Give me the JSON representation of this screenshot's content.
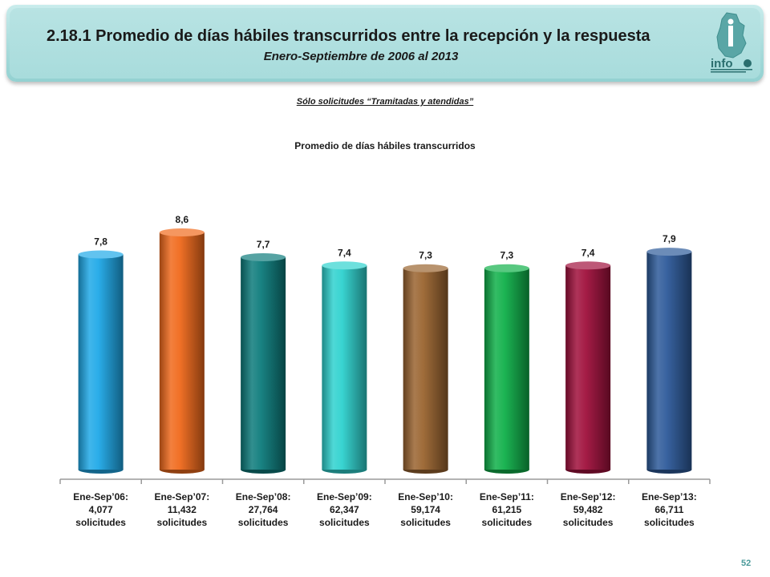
{
  "header": {
    "title": "2.18.1 Promedio de días hábiles transcurridos entre la recepción y la respuesta",
    "subtitle": "Enero-Septiembre de 2006 al 2013",
    "logo_text": "info"
  },
  "note": "Sólo solicitudes “Tramitadas y atendidas”",
  "page_number": "52",
  "chart_data": {
    "type": "bar",
    "title": "Promedio de días hábiles transcurridos",
    "categories": [
      "Ene-Sep’06:",
      "Ene-Sep’07:",
      "Ene-Sep’08:",
      "Ene-Sep’09:",
      "Ene-Sep’10:",
      "Ene-Sep’11:",
      "Ene-Sep’12:",
      "Ene-Sep’13:"
    ],
    "category_counts": [
      "4,077",
      "11,432",
      "27,764",
      "62,347",
      "59,174",
      "61,215",
      "59,482",
      "66,711"
    ],
    "category_unit": "solicitudes",
    "values": [
      7.8,
      8.6,
      7.7,
      7.4,
      7.3,
      7.3,
      7.4,
      7.9
    ],
    "value_labels": [
      "7,8",
      "8,6",
      "7,7",
      "7,4",
      "7,3",
      "7,3",
      "7,4",
      "7,9"
    ],
    "colors": [
      "#1fa9e8",
      "#f06a1c",
      "#0d7b7b",
      "#2fd2cf",
      "#9a6430",
      "#10b04a",
      "#a0103c",
      "#2d5a9a"
    ],
    "grid": false
  }
}
